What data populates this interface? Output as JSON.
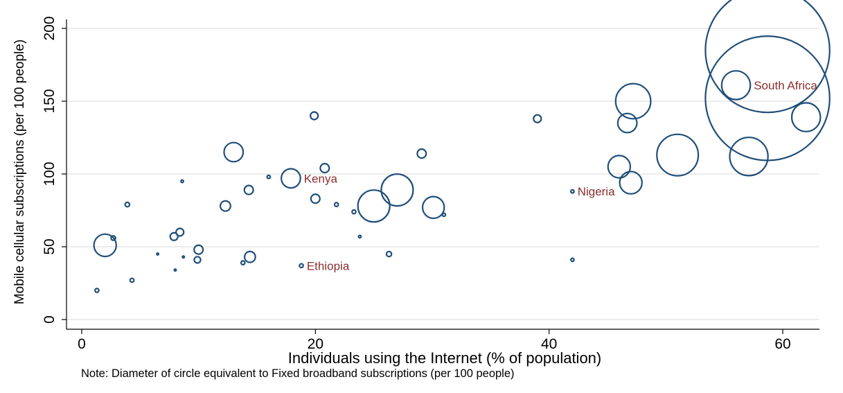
{
  "chart_data": {
    "type": "scatter",
    "xlabel": "Individuals using the Internet (% of population)",
    "ylabel": "Mobile cellular subscriptions (per 100 people)",
    "xlim": [
      0,
      63
    ],
    "ylim": [
      0,
      200
    ],
    "xticks": [
      0,
      20,
      40,
      60
    ],
    "yticks": [
      0,
      50,
      100,
      150,
      200
    ],
    "grid": true,
    "colors": {
      "marker": "#1f4e79",
      "label": "#8b2e2e",
      "grid": "#e6e6e6",
      "axis": "#000000"
    },
    "points": [
      {
        "x": 1.3,
        "y": 20,
        "size": 0.6
      },
      {
        "x": 2.0,
        "y": 51,
        "size": 3.5
      },
      {
        "x": 2.7,
        "y": 56,
        "size": 0.7
      },
      {
        "x": 3.9,
        "y": 79,
        "size": 0.7
      },
      {
        "x": 4.3,
        "y": 27,
        "size": 0.6
      },
      {
        "x": 6.5,
        "y": 45,
        "size": 0.2
      },
      {
        "x": 8.0,
        "y": 34,
        "size": 0.2
      },
      {
        "x": 7.9,
        "y": 57,
        "size": 1.2
      },
      {
        "x": 8.4,
        "y": 60,
        "size": 1.2
      },
      {
        "x": 8.6,
        "y": 95,
        "size": 0.4
      },
      {
        "x": 8.7,
        "y": 43,
        "size": 0.2
      },
      {
        "x": 9.9,
        "y": 41,
        "size": 1.0
      },
      {
        "x": 10.0,
        "y": 48,
        "size": 1.4
      },
      {
        "x": 12.3,
        "y": 78,
        "size": 1.6
      },
      {
        "x": 13.0,
        "y": 115,
        "size": 3.0
      },
      {
        "x": 13.8,
        "y": 39,
        "size": 0.6
      },
      {
        "x": 14.3,
        "y": 89,
        "size": 1.4
      },
      {
        "x": 14.4,
        "y": 43,
        "size": 1.7
      },
      {
        "x": 16.0,
        "y": 98,
        "size": 0.5
      },
      {
        "x": 17.9,
        "y": 97,
        "size": 3.0,
        "label": "Kenya"
      },
      {
        "x": 18.8,
        "y": 37,
        "size": 0.6,
        "label": "Ethiopia"
      },
      {
        "x": 19.9,
        "y": 140,
        "size": 1.2
      },
      {
        "x": 20.0,
        "y": 83,
        "size": 1.4
      },
      {
        "x": 20.8,
        "y": 104,
        "size": 1.4
      },
      {
        "x": 21.8,
        "y": 79,
        "size": 0.6
      },
      {
        "x": 23.3,
        "y": 74,
        "size": 0.6
      },
      {
        "x": 23.8,
        "y": 57,
        "size": 0.4
      },
      {
        "x": 25.0,
        "y": 78,
        "size": 5.0
      },
      {
        "x": 26.3,
        "y": 45,
        "size": 0.8
      },
      {
        "x": 27.0,
        "y": 89,
        "size": 5.0
      },
      {
        "x": 29.1,
        "y": 114,
        "size": 1.4
      },
      {
        "x": 30.1,
        "y": 77,
        "size": 3.4
      },
      {
        "x": 31.0,
        "y": 72,
        "size": 0.5
      },
      {
        "x": 39.0,
        "y": 138,
        "size": 1.2
      },
      {
        "x": 42.0,
        "y": 88,
        "size": 0.5,
        "label": "Nigeria"
      },
      {
        "x": 42.0,
        "y": 41,
        "size": 0.5
      },
      {
        "x": 46.0,
        "y": 105,
        "size": 3.5
      },
      {
        "x": 46.7,
        "y": 135,
        "size": 3.0
      },
      {
        "x": 47.0,
        "y": 94,
        "size": 3.5
      },
      {
        "x": 47.2,
        "y": 150,
        "size": 5.5
      },
      {
        "x": 51.0,
        "y": 113,
        "size": 6.5
      },
      {
        "x": 56.0,
        "y": 161,
        "size": 4.5,
        "label": "South Africa"
      },
      {
        "x": 57.1,
        "y": 112,
        "size": 6.0
      },
      {
        "x": 58.7,
        "y": 152,
        "size": 19.5
      },
      {
        "x": 58.7,
        "y": 185,
        "size": 19.5
      },
      {
        "x": 62.0,
        "y": 139,
        "size": 4.5
      }
    ]
  },
  "note": "Note: Diameter of circle equivalent to Fixed broadband subscriptions (per 100 people)"
}
